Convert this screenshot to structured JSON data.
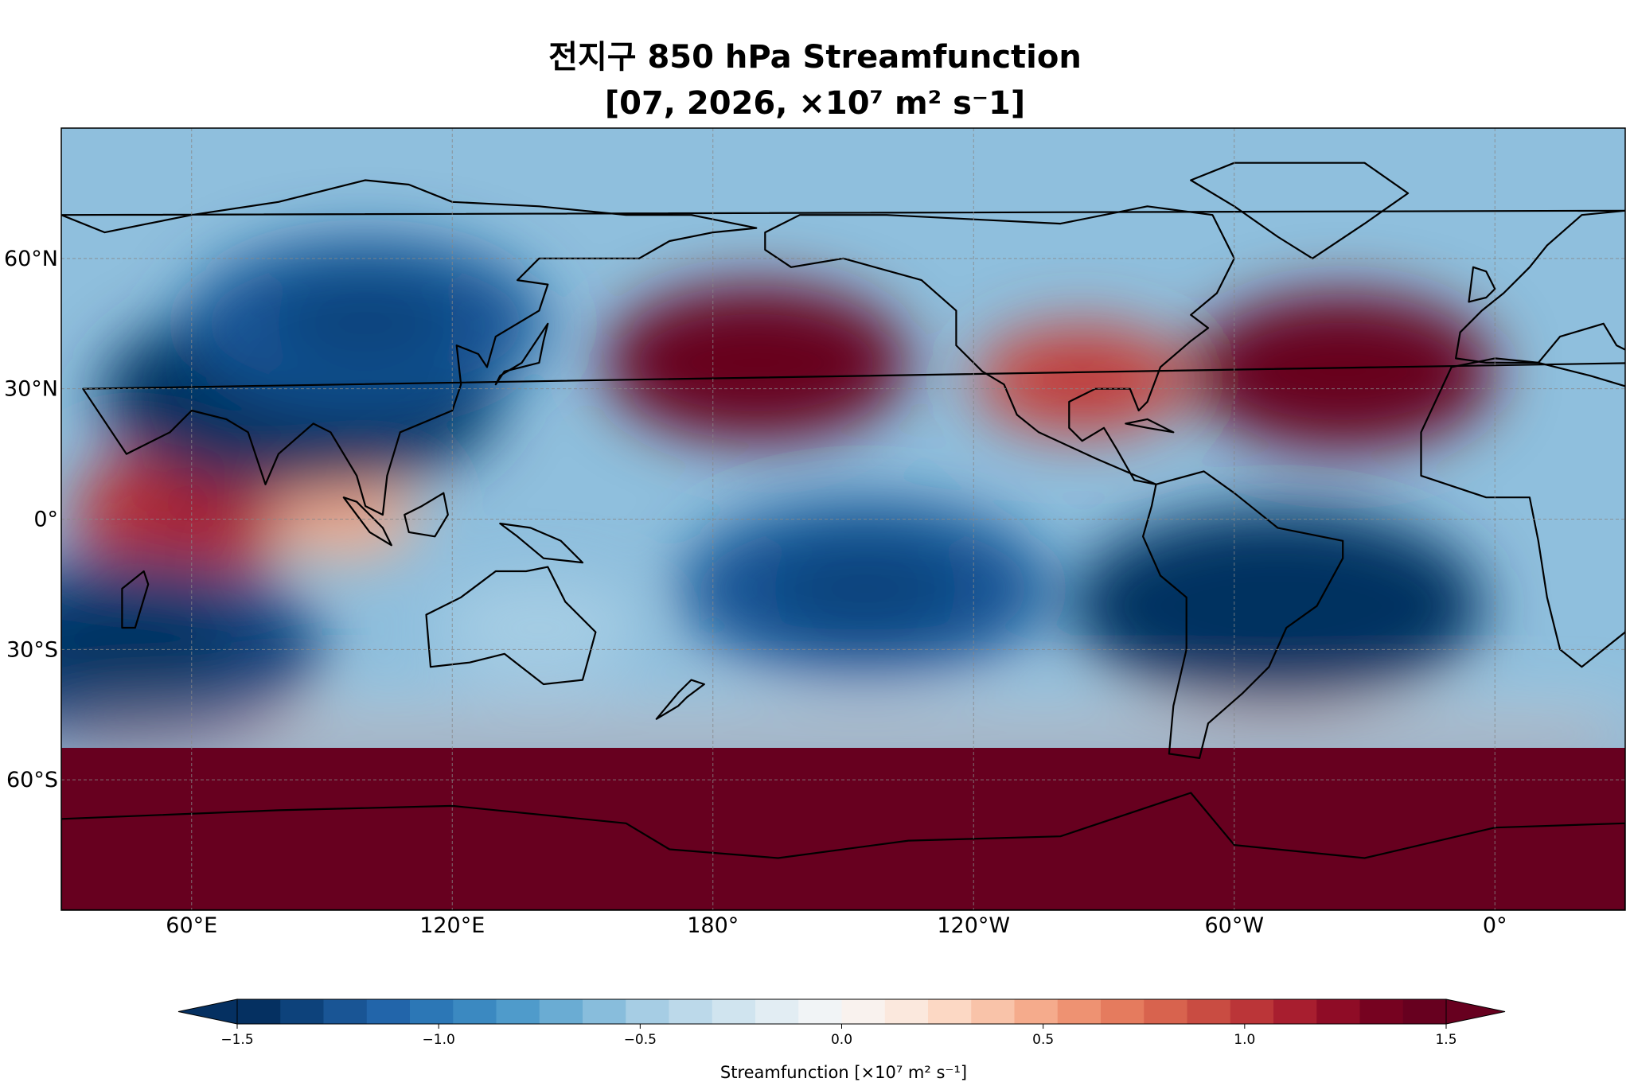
{
  "title": {
    "line1": "전지구 850 hPa Streamfunction",
    "line2": "[07, 2026, ×10⁷ m² s⁻1]"
  },
  "map": {
    "projection": "PlateCarree",
    "central_longitude": 180,
    "lon_range": [
      30,
      390
    ],
    "lat_range": [
      -90,
      90
    ],
    "gridlines": true,
    "coastlines": true,
    "lon_ticks": [
      {
        "lon": 60,
        "label": "60°E"
      },
      {
        "lon": 120,
        "label": "120°E"
      },
      {
        "lon": 180,
        "label": "180°"
      },
      {
        "lon": 240,
        "label": "120°W"
      },
      {
        "lon": 300,
        "label": "60°W"
      },
      {
        "lon": 360,
        "label": "0°"
      }
    ],
    "lat_ticks": [
      {
        "lat": 60,
        "label": "60°N"
      },
      {
        "lat": 30,
        "label": "30°N"
      },
      {
        "lat": 0,
        "label": "0°"
      },
      {
        "lat": -30,
        "label": "30°S"
      },
      {
        "lat": -60,
        "label": "60°S"
      }
    ]
  },
  "chart_data": {
    "type": "heatmap",
    "variable": "Streamfunction",
    "units": "×10⁷ m² s⁻¹",
    "colormap": "RdBu_r",
    "vmin": -1.5,
    "vmax": 1.5,
    "levels": 31,
    "extend": "both",
    "features": [
      {
        "feature": "anticyclone",
        "lon": 190,
        "lat": 36,
        "value": 1.45
      },
      {
        "feature": "anticyclone",
        "lon": 325,
        "lat": 34,
        "value": 1.45
      },
      {
        "feature": "anticyclone",
        "lon": 265,
        "lat": 32,
        "value": 0.9
      },
      {
        "feature": "anticyclone",
        "lon": 60,
        "lat": 2,
        "value": 1.05
      },
      {
        "feature": "anticyclone",
        "lon": 95,
        "lat": 0,
        "value": 0.45
      },
      {
        "feature": "cyclone",
        "lon": 85,
        "lat": 28,
        "value": -1.4
      },
      {
        "feature": "cyclone",
        "lon": 100,
        "lat": 45,
        "value": -1.2
      },
      {
        "feature": "cyclone",
        "lon": 45,
        "lat": -30,
        "value": -1.35
      },
      {
        "feature": "cyclone",
        "lon": 215,
        "lat": -16,
        "value": -1.25
      },
      {
        "feature": "cyclone",
        "lon": 310,
        "lat": -20,
        "value": -1.45
      },
      {
        "feature": "cyclone",
        "lon": 140,
        "lat": -25,
        "value": -0.45
      },
      {
        "feature": "southern high band",
        "lat": -70,
        "value": 1.5
      }
    ]
  },
  "colorbar": {
    "orientation": "horizontal",
    "label": "Streamfunction [×10⁷ m² s⁻¹]",
    "ticks": [
      {
        "value": -1.5,
        "label": "−1.5"
      },
      {
        "value": -1.0,
        "label": "−1.0"
      },
      {
        "value": -0.5,
        "label": "−0.5"
      },
      {
        "value": 0.0,
        "label": "0.0"
      },
      {
        "value": 0.5,
        "label": "0.5"
      },
      {
        "value": 1.0,
        "label": "1.0"
      },
      {
        "value": 1.5,
        "label": "1.5"
      }
    ],
    "colors": [
      "#053061",
      "#0d427b",
      "#195595",
      "#2265aa",
      "#2c77b6",
      "#3b89c1",
      "#4f9bcb",
      "#6aacd3",
      "#88bddc",
      "#a6cde4",
      "#bcd9ea",
      "#d0e4ef",
      "#e2edf3",
      "#f1f4f6",
      "#f9f2ee",
      "#fbe8dd",
      "#fcd8c4",
      "#f9c3a9",
      "#f5ab8c",
      "#ee9272",
      "#e57b5e",
      "#d8634e",
      "#c94c42",
      "#bb3538",
      "#a81e2f",
      "#8f0c26",
      "#760220",
      "#67001f"
    ],
    "under_color": "#053061",
    "over_color": "#67001f"
  }
}
